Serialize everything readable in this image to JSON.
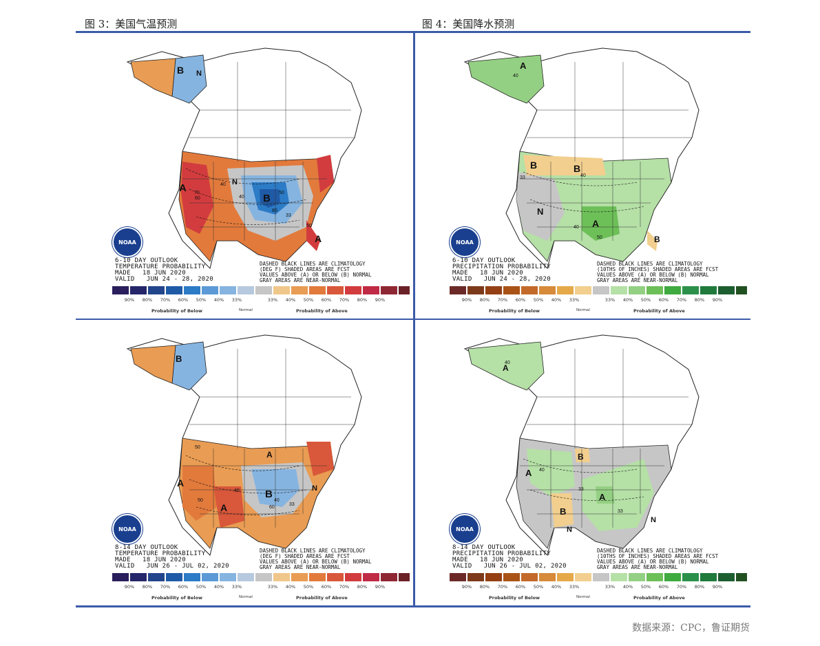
{
  "titles": {
    "left": "图 3：美国气温预测",
    "right": "图 4：美国降水预测"
  },
  "source": "数据来源：CPC，鲁证期货",
  "logo_text": "NOAA",
  "temp_legend": {
    "colors": [
      "#2a1f5c",
      "#25276a",
      "#23458c",
      "#1f5aa6",
      "#2c7bc6",
      "#5b9ad6",
      "#86b4e0",
      "#b7c9de",
      "#c6c6c6",
      "#f0c78a",
      "#e99c53",
      "#e27a3c",
      "#d9573a",
      "#d23c3e",
      "#c02a45",
      "#8e2733",
      "#6b2128"
    ],
    "labels": [
      "90%",
      "80%",
      "70%",
      "60%",
      "50%",
      "40%",
      "33%",
      "33%",
      "40%",
      "50%",
      "60%",
      "70%",
      "80%",
      "90%"
    ],
    "below": "Probability of Below",
    "normal": "Normal",
    "above": "Probability of Above"
  },
  "precip_legend": {
    "colors": [
      "#6b2a28",
      "#7d3a1a",
      "#944014",
      "#a95416",
      "#c36a2a",
      "#d68a3a",
      "#e5a94a",
      "#f2cf8e",
      "#c6c6c6",
      "#b5e0a6",
      "#94d083",
      "#6dbf58",
      "#3faa40",
      "#2b914a",
      "#1f7a3c",
      "#1d5e30",
      "#225121"
    ],
    "labels": [
      "90%",
      "80%",
      "70%",
      "60%",
      "50%",
      "40%",
      "33%",
      "33%",
      "40%",
      "50%",
      "60%",
      "70%",
      "80%",
      "90%"
    ],
    "below": "Probability of Below",
    "normal": "Normal",
    "above": "Probability of Above"
  },
  "panels": [
    {
      "id": "temp-6-10",
      "outlook": [
        "6-10 DAY OUTLOOK",
        "TEMPERATURE PROBABILITY",
        "MADE   18 JUN 2020",
        "VALID   JUN 24 - 28, 2020"
      ],
      "note": [
        "DASHED BLACK LINES ARE CLIMATOLOGY",
        "(DEG F) SHADED AREAS ARE FCST",
        "VALUES ABOVE (A) OR BELOW (B) NORMAL",
        "GRAY AREAS ARE NEAR-NORMAL"
      ],
      "map_labels": [
        "B",
        "N",
        "A",
        "B",
        "A",
        "N"
      ],
      "contour_labels": [
        "33",
        "40",
        "50",
        "60",
        "70",
        "80",
        "40",
        "50"
      ]
    },
    {
      "id": "precip-6-10",
      "outlook": [
        "6-10 DAY OUTLOOK",
        "PRECIPITATION PROBABILITY",
        "MADE   18 JUN 2020",
        "VALID   JUN 24 - 28, 2020"
      ],
      "note": [
        "DASHED BLACK LINES ARE CLIMATOLOGY",
        "(10THS OF INCHES) SHADED AREAS ARE FCST",
        "VALUES ABOVE (A) OR BELOW (B) NORMAL",
        "GRAY AREAS ARE NEAR-NORMAL"
      ],
      "map_labels": [
        "A",
        "B",
        "B",
        "N",
        "A",
        "B"
      ],
      "contour_labels": [
        "40",
        "33",
        "40",
        "50",
        "40"
      ]
    },
    {
      "id": "temp-8-14",
      "outlook": [
        "8-14 DAY OUTLOOK",
        "TEMPERATURE PROBABILITY",
        "MADE   18 JUN 2020",
        "VALID   JUN 26 - JUL 02, 2020"
      ],
      "note": [
        "DASHED BLACK LINES ARE CLIMATOLOGY",
        "(DEG F) SHADED AREAS ARE FCST",
        "VALUES ABOVE (A) OR BELOW (B) NORMAL",
        "GRAY AREAS ARE NEAR-NORMAL"
      ],
      "map_labels": [
        "B",
        "A",
        "A",
        "A",
        "B",
        "N"
      ],
      "contour_labels": [
        "33",
        "40",
        "50",
        "60",
        "40",
        "50"
      ]
    },
    {
      "id": "precip-8-14",
      "outlook": [
        "8-14 DAY OUTLOOK",
        "PRECIPITATION PROBABILITY",
        "MADE   18 JUN 2020",
        "VALID   JUN 26 - JUL 02, 2020"
      ],
      "note": [
        "DASHED BLACK LINES ARE CLIMATOLOGY",
        "(10THS OF INCHES) SHADED AREAS ARE FCST",
        "VALUES ABOVE (A) OR BELOW (B) NORMAL",
        "GRAY AREAS ARE NEAR-NORMAL"
      ],
      "map_labels": [
        "A",
        "A",
        "B",
        "B",
        "A",
        "N",
        "N"
      ],
      "contour_labels": [
        "40",
        "33",
        "40",
        "33"
      ]
    }
  ]
}
